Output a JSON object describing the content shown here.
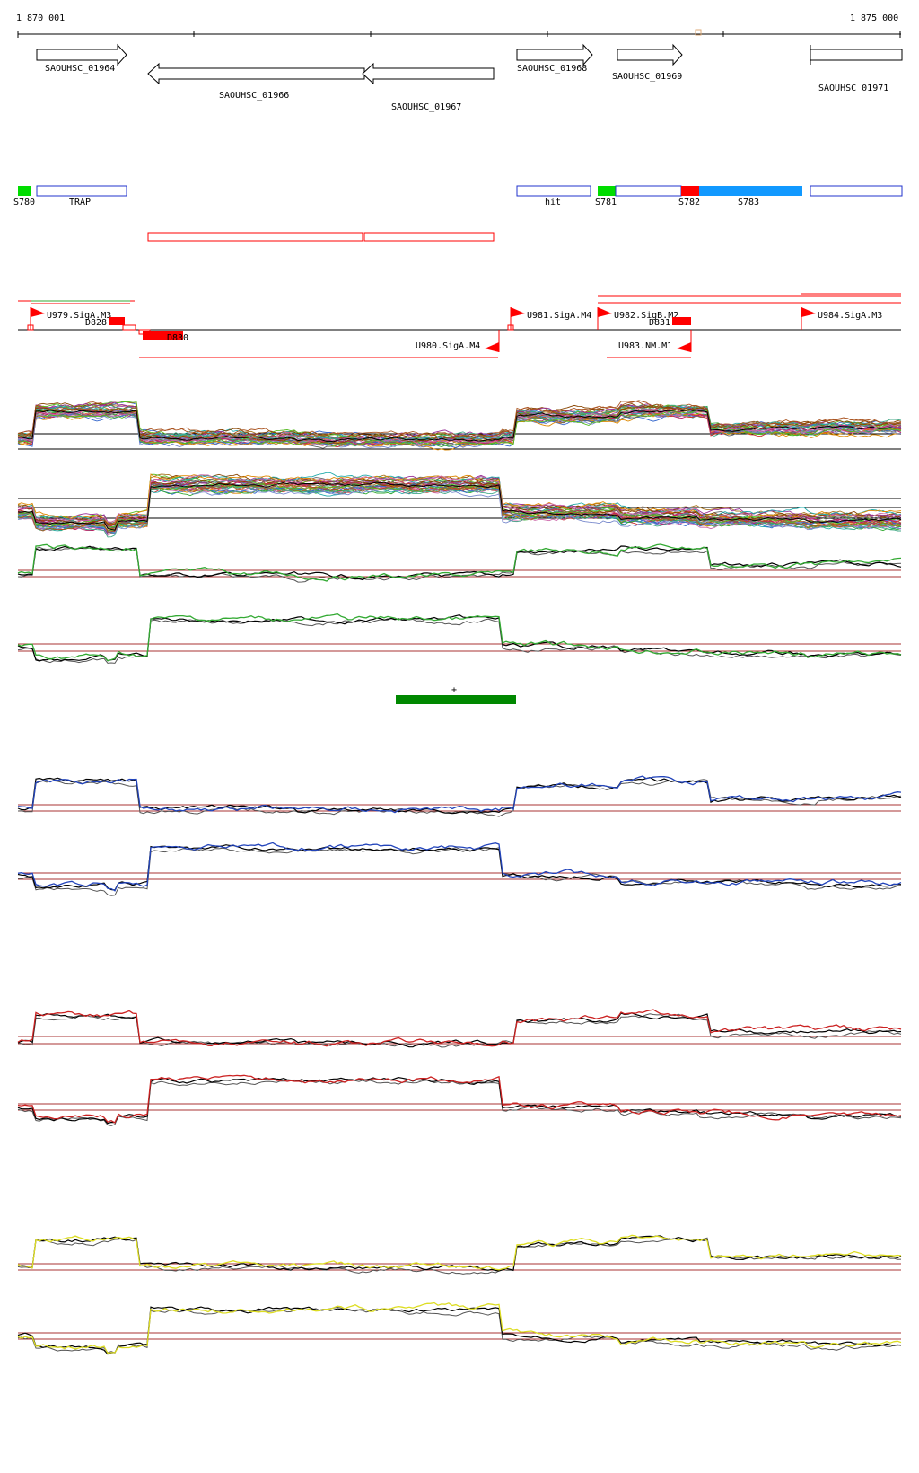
{
  "ruler": {
    "start_label": "1 870 001",
    "end_label": "1 875 000"
  },
  "genes": [
    {
      "label": "SAOUHSC_01964",
      "strand": "+"
    },
    {
      "label": "SAOUHSC_01966",
      "strand": "-"
    },
    {
      "label": "SAOUHSC_01967",
      "strand": "-"
    },
    {
      "label": "SAOUHSC_01968",
      "strand": "+"
    },
    {
      "label": "SAOUHSC_01969",
      "strand": "+"
    },
    {
      "label": "SAOUHSC_01971",
      "strand": "+"
    }
  ],
  "segments": [
    {
      "label": "S780",
      "color": "#00dd00"
    },
    {
      "label": "TRAP",
      "color": "#2233cc"
    },
    {
      "label": "hit",
      "color": "#2233cc"
    },
    {
      "label": "S781",
      "color": "#00dd00"
    },
    {
      "label": "S782",
      "color": "#ff0000"
    },
    {
      "label": "S783",
      "color": "#1199ff"
    }
  ],
  "promoters": [
    {
      "label": "U979.SigA.M3",
      "strand": "+"
    },
    {
      "label": "D828",
      "strand": "+"
    },
    {
      "label": "D830",
      "strand": "-"
    },
    {
      "label": "U980.SigA.M4",
      "strand": "-"
    },
    {
      "label": "U981.SigA.M4",
      "strand": "+"
    },
    {
      "label": "U982.SigB.M2",
      "strand": "+"
    },
    {
      "label": "D831",
      "strand": "+"
    },
    {
      "label": "U983.NM.M1",
      "strand": "-"
    },
    {
      "label": "U984.SigA.M3",
      "strand": "+"
    }
  ],
  "marker": {
    "label": "+",
    "color": "#008800"
  },
  "track_colors": {
    "green": "#33aa33",
    "blue": "#2244bb",
    "red": "#cc2222",
    "yellow": "#dddd22",
    "ref_line": "#aa3333"
  }
}
